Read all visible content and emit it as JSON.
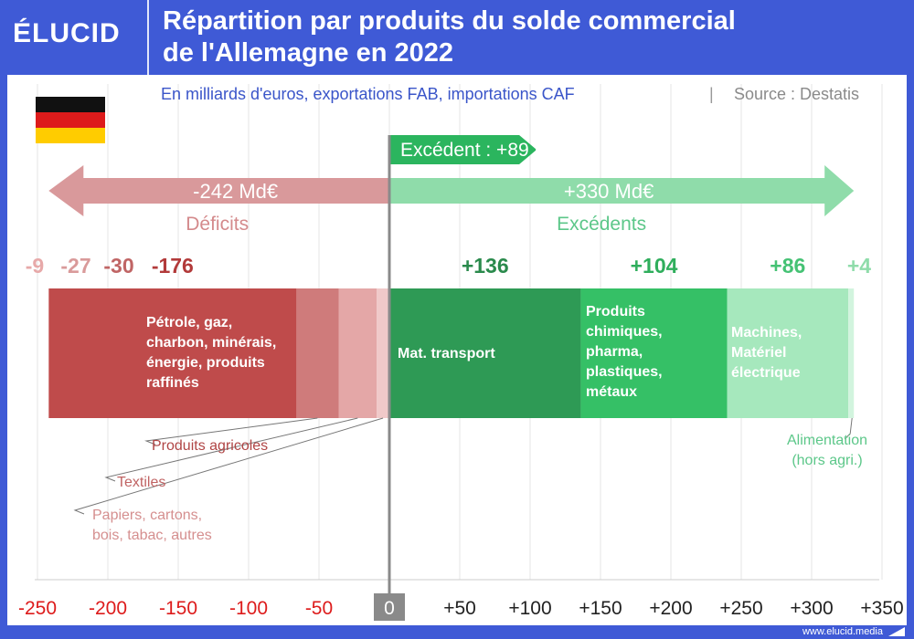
{
  "brand": {
    "logo": "ÉLUCID",
    "url": "www.elucid.media"
  },
  "title_line1": "Répartition par produits du solde commercial",
  "title_line2": "de l'Allemagne en 2022",
  "subtitle": "En milliards d'euros, exportations FAB, importations CAF",
  "source": "Source : Destatis",
  "colors": {
    "header": "#3f5ad6",
    "deficit_arrow": "#d9999b",
    "surplus_arrow": "#8fdcaa",
    "surplus_tag": "#2bb55e",
    "zero_line": "#8a8a8a",
    "tick_neg": "#dd1b1b",
    "tick_pos": "#222222"
  },
  "chart_data": {
    "type": "bar",
    "orientation": "horizontal-stacked",
    "x_axis": {
      "min": -250,
      "max": 350,
      "ticks": [
        "-250",
        "-200",
        "-150",
        "-100",
        "-50",
        "0",
        "+50",
        "+100",
        "+150",
        "+200",
        "+250",
        "+300",
        "+350"
      ],
      "tick_values": [
        -250,
        -200,
        -150,
        -100,
        -50,
        0,
        50,
        100,
        150,
        200,
        250,
        300,
        350
      ]
    },
    "grid": true,
    "balance_label": "Excédent : +89 Md€",
    "balance": 89,
    "deficit_total_label": "-242 Md€",
    "deficit_total": -242,
    "deficit_label": "Déficits",
    "surplus_total_label": "+330 Md€",
    "surplus_total": 330,
    "surplus_label": "Excédents",
    "segments": [
      {
        "value_label": "-9",
        "value": -9,
        "color": "#f0c9c9",
        "value_color": "#e7a9a9",
        "label": "Papiers, cartons, bois, tabac, autres",
        "label_lines": [
          "Papiers, cartons,",
          "bois, tabac, autres"
        ],
        "label_color": "#d58f8f"
      },
      {
        "value_label": "-27",
        "value": -27,
        "color": "#e4a7a7",
        "value_color": "#d99a9a",
        "label": "Textiles",
        "label_lines": [
          "Textiles"
        ],
        "label_color": "#c06363"
      },
      {
        "value_label": "-30",
        "value": -30,
        "color": "#cf7b7b",
        "value_color": "#c06565",
        "label": "Produits agricoles",
        "label_lines": [
          "Produits agricoles"
        ],
        "label_color": "#b04545"
      },
      {
        "value_label": "-176",
        "value": -176,
        "color": "#bf4b4b",
        "value_color": "#b23a3a",
        "label": "Pétrole, gaz, charbon, minérais, énergie, produits raffinés",
        "label_lines": [
          "Pétrole, gaz,",
          "charbon, minérais,",
          "énergie, produits",
          "raffinés"
        ],
        "label_color": "#ffffff"
      },
      {
        "value_label": "+136",
        "value": 136,
        "color": "#2e9a55",
        "value_color": "#2a8a4c",
        "label": "Mat. transport",
        "label_lines": [
          "Mat. transport"
        ],
        "label_color": "#ffffff"
      },
      {
        "value_label": "+104",
        "value": 104,
        "color": "#35c066",
        "value_color": "#2fae5c",
        "label": "Produits chimiques, pharma, plastiques, métaux",
        "label_lines": [
          "Produits",
          "chimiques,",
          "pharma,",
          "plastiques,",
          "métaux"
        ],
        "label_color": "#ffffff"
      },
      {
        "value_label": "+86",
        "value": 86,
        "color": "#a6e8bd",
        "value_color": "#45c274",
        "label": "Machines, Matériel électrique",
        "label_lines": [
          "Machines,",
          "Matériel",
          "électrique"
        ],
        "label_color": "#ffffff"
      },
      {
        "value_label": "+4",
        "value": 4,
        "color": "#d2f4de",
        "value_color": "#8fdcaa",
        "label": "Alimentation (hors agri.)",
        "label_lines": [
          "Alimentation",
          "(hors agri.)"
        ],
        "label_color": "#5cc789"
      }
    ]
  }
}
